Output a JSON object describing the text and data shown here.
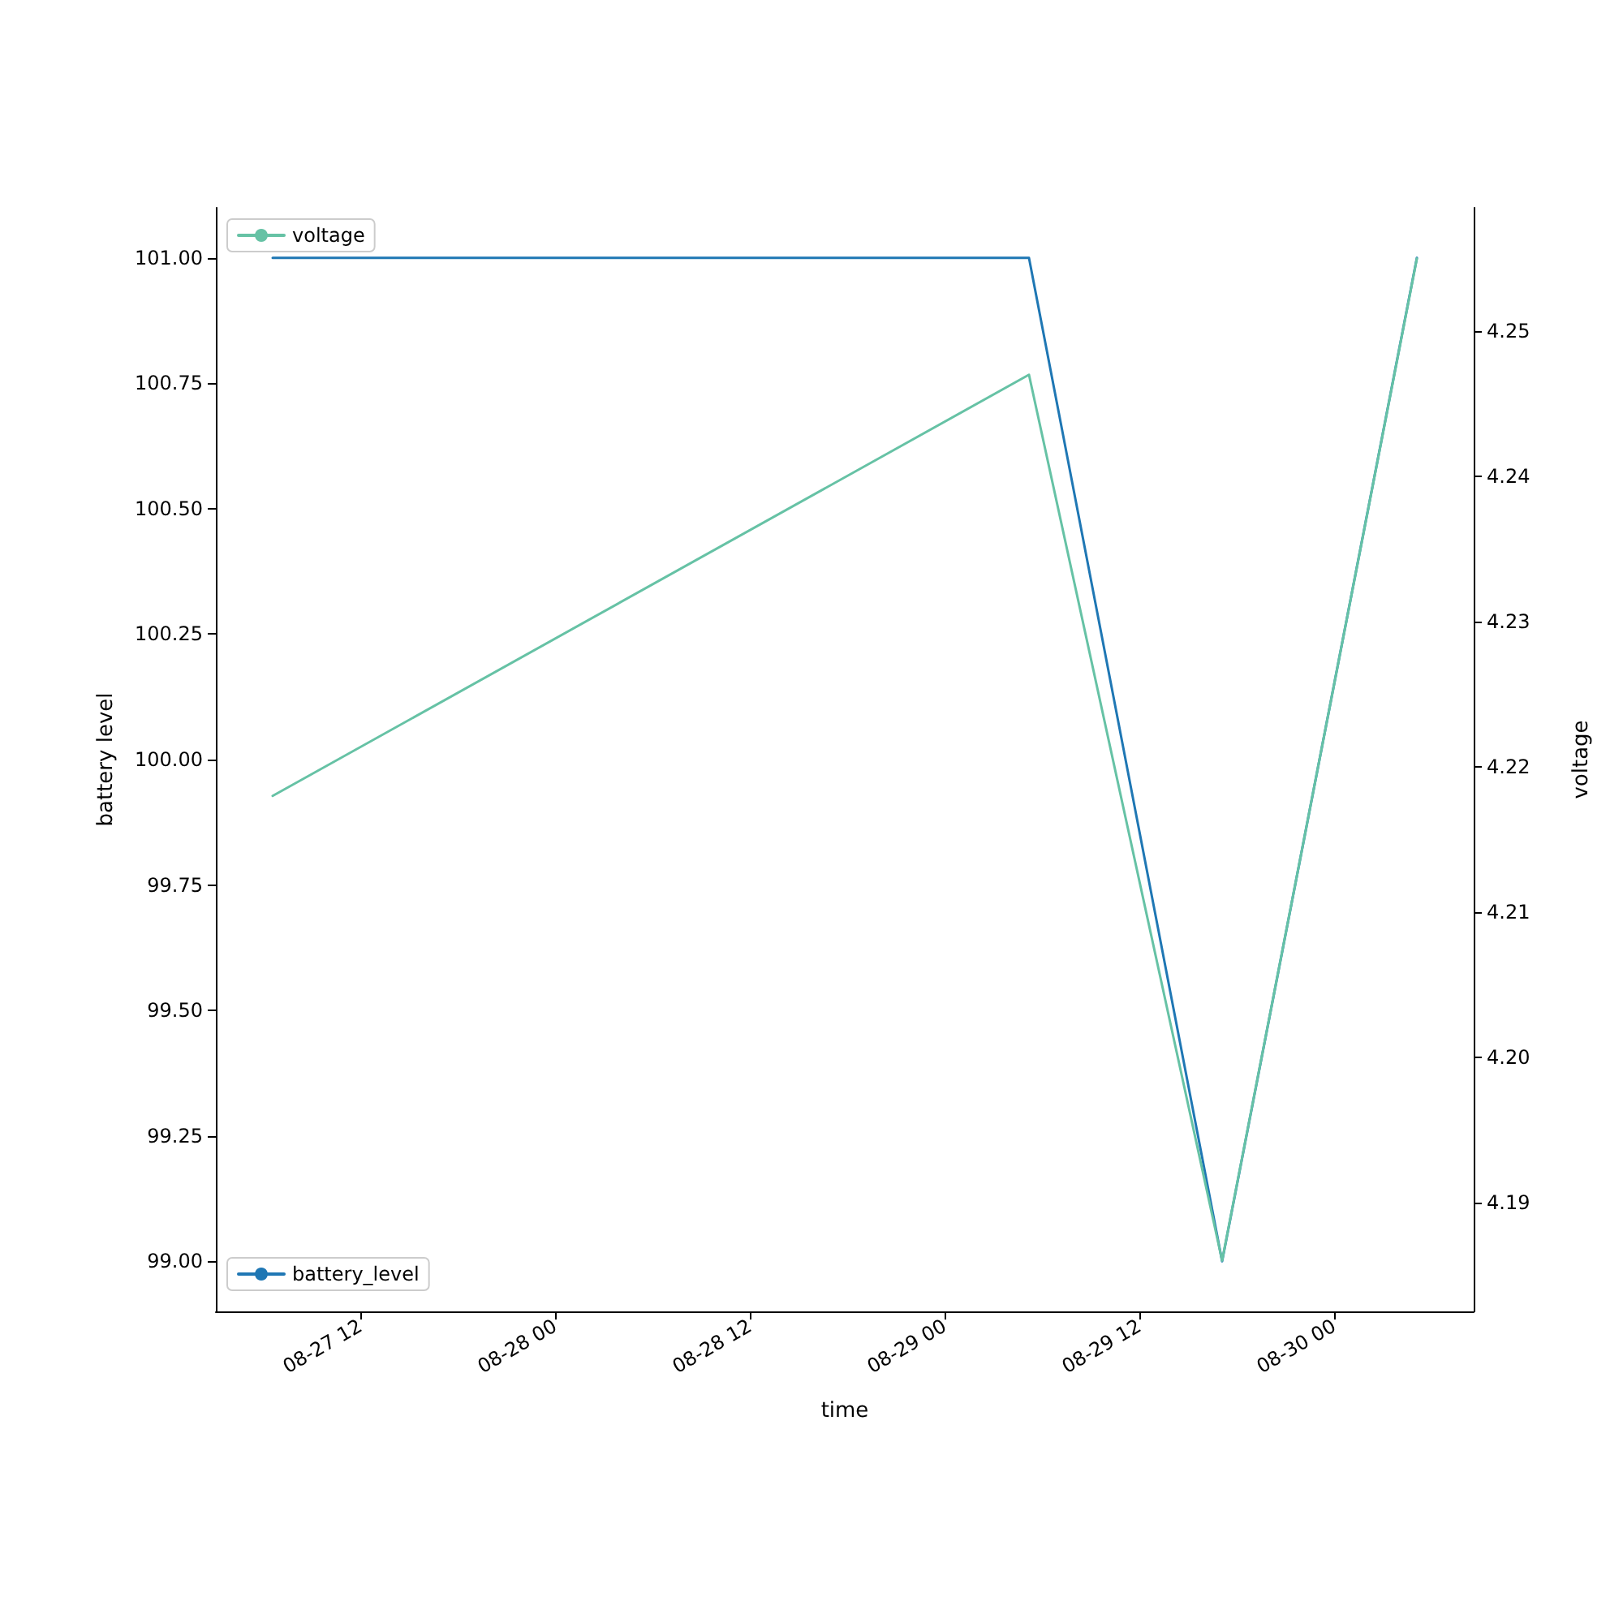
{
  "chart_data": {
    "type": "line",
    "xlabel": "time",
    "ylabel": "battery level",
    "y2label": "voltage",
    "x": [
      "--08-27T06:36",
      "--08-29T05:12",
      "--08-29T17:06",
      "--08-30T05:06"
    ],
    "series": [
      {
        "name": "battery_level",
        "color": "#1f77b4",
        "values": [
          101,
          101,
          99,
          101
        ]
      },
      {
        "name": "voltage",
        "color": "#66c2a5",
        "axis": "y2",
        "values": [
          4.218,
          4.247,
          4.186,
          4.255
        ]
      }
    ],
    "xlim": [
      "--08-27T03:06",
      "--08-30T08:36"
    ],
    "xticks": [
      {
        "value": "--08-27T12:00",
        "label": "08-27 12"
      },
      {
        "value": "--08-28T00:00",
        "label": "08-28 00"
      },
      {
        "value": "--08-28T12:00",
        "label": "08-28 12"
      },
      {
        "value": "--08-29T00:00",
        "label": "08-29 00"
      },
      {
        "value": "--08-29T12:00",
        "label": "08-29 12"
      },
      {
        "value": "--08-30T00:00",
        "label": "08-30 00"
      }
    ],
    "ylim": [
      98.9,
      101.1
    ],
    "yticks": [
      {
        "value": 99,
        "label": "99.00"
      },
      {
        "value": 99.25,
        "label": "99.25"
      },
      {
        "value": 99.5,
        "label": "99.50"
      },
      {
        "value": 99.75,
        "label": "99.75"
      },
      {
        "value": 100,
        "label": "100.00"
      },
      {
        "value": 100.25,
        "label": "100.25"
      },
      {
        "value": 100.5,
        "label": "100.50"
      },
      {
        "value": 100.75,
        "label": "100.75"
      },
      {
        "value": 101,
        "label": "101.00"
      }
    ],
    "y2lim": [
      4.1825,
      4.2585
    ],
    "y2ticks": [
      {
        "value": 4.19,
        "label": "4.19"
      },
      {
        "value": 4.2,
        "label": "4.20"
      },
      {
        "value": 4.21,
        "label": "4.21"
      },
      {
        "value": 4.22,
        "label": "4.22"
      },
      {
        "value": 4.23,
        "label": "4.23"
      },
      {
        "value": 4.24,
        "label": "4.24"
      },
      {
        "value": 4.25,
        "label": "4.25"
      }
    ],
    "legend": "left",
    "grid": false,
    "line_style": "solid",
    "marker": "none"
  }
}
